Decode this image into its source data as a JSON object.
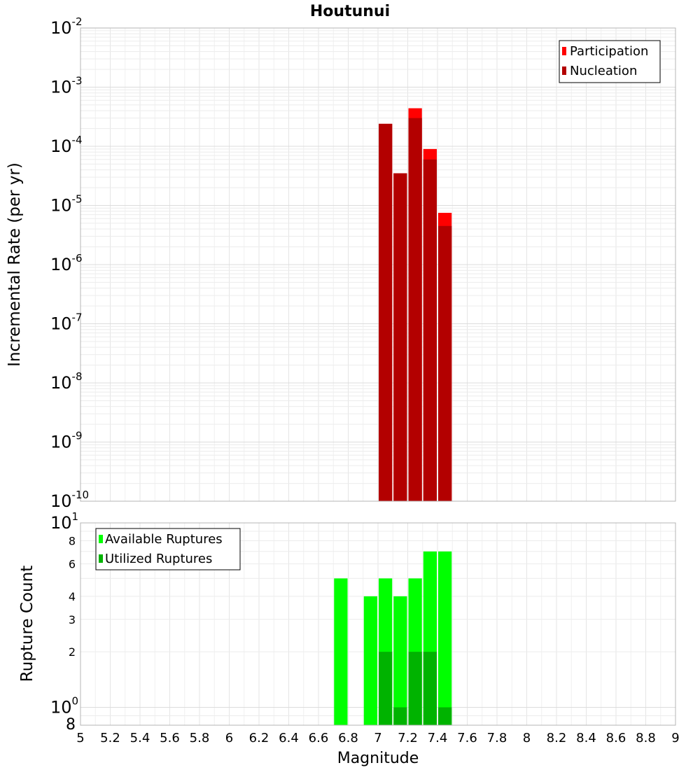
{
  "chart_data": [
    {
      "type": "bar",
      "title": "Houtunui",
      "ylabel": "Incremental Rate (per yr)",
      "xlabel": "",
      "yscale": "log",
      "ylim": [
        1e-10,
        0.01
      ],
      "xlim": [
        5,
        9
      ],
      "bar_width": 0.1,
      "y_tick_labels": [
        {
          "value": 0.01,
          "base": "10",
          "exp": "-2"
        },
        {
          "value": 0.001,
          "base": "10",
          "exp": "-3"
        },
        {
          "value": 0.0001,
          "base": "10",
          "exp": "-4"
        },
        {
          "value": 1e-05,
          "base": "10",
          "exp": "-5"
        },
        {
          "value": 1e-06,
          "base": "10",
          "exp": "-6"
        },
        {
          "value": 1e-07,
          "base": "10",
          "exp": "-7"
        },
        {
          "value": 1e-08,
          "base": "10",
          "exp": "-8"
        },
        {
          "value": 1e-09,
          "base": "10",
          "exp": "-9"
        },
        {
          "value": 1e-10,
          "base": "10",
          "exp": "-10"
        }
      ],
      "legend_position": "top-right",
      "series": [
        {
          "name": "Participation",
          "color": "#ff0000",
          "x": [
            7.05,
            7.15,
            7.25,
            7.35,
            7.45
          ],
          "values": [
            0.00024,
            3.5e-05,
            0.00044,
            9e-05,
            7.5e-06
          ]
        },
        {
          "name": "Nucleation",
          "color": "#b30000",
          "x": [
            7.05,
            7.15,
            7.25,
            7.35,
            7.45
          ],
          "values": [
            0.00024,
            3.5e-05,
            0.0003,
            6e-05,
            4.5e-06
          ]
        }
      ]
    },
    {
      "type": "bar",
      "title": "",
      "ylabel": "Rupture Count",
      "xlabel": "Magnitude",
      "yscale": "log",
      "ylim": [
        0.8,
        10
      ],
      "xlim": [
        5,
        9
      ],
      "bar_width": 0.1,
      "y_tick_labels": [
        {
          "value": 10,
          "base": "10",
          "exp": "1"
        },
        {
          "value": 8,
          "base": "8",
          "exp": ""
        },
        {
          "value": 6,
          "base": "6",
          "exp": ""
        },
        {
          "value": 4,
          "base": "4",
          "exp": ""
        },
        {
          "value": 3,
          "base": "3",
          "exp": ""
        },
        {
          "value": 2,
          "base": "2",
          "exp": ""
        },
        {
          "value": 1,
          "base": "10",
          "exp": "0"
        },
        {
          "value": 0.8,
          "base": "8",
          "exp": ""
        }
      ],
      "x_ticks": [
        "5",
        "5.2",
        "5.4",
        "5.6",
        "5.8",
        "6",
        "6.2",
        "6.4",
        "6.6",
        "6.8",
        "7",
        "7.2",
        "7.4",
        "7.6",
        "7.8",
        "8",
        "8.2",
        "8.4",
        "8.6",
        "8.8",
        "9"
      ],
      "legend_position": "top-left",
      "series": [
        {
          "name": "Available Ruptures",
          "color": "#00ff00",
          "x": [
            6.75,
            6.95,
            7.05,
            7.15,
            7.25,
            7.35,
            7.45
          ],
          "values": [
            5,
            4,
            5,
            4,
            5,
            7,
            7
          ]
        },
        {
          "name": "Utilized Ruptures",
          "color": "#00b300",
          "x": [
            7.05,
            7.15,
            7.25,
            7.35,
            7.45
          ],
          "values": [
            2,
            1,
            2,
            2,
            1
          ]
        }
      ]
    }
  ]
}
